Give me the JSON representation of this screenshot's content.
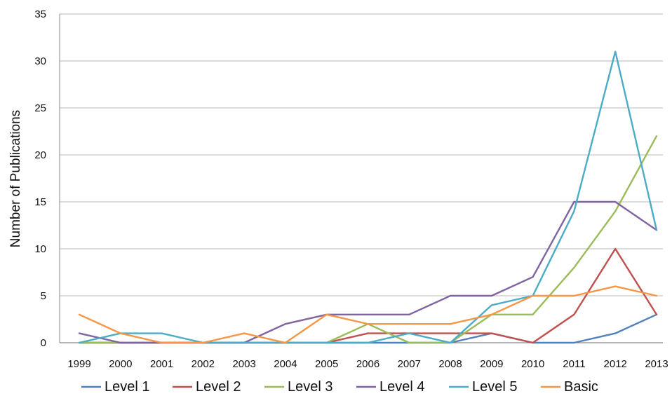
{
  "chart_data": {
    "type": "line",
    "ylabel": "Number of Publications",
    "xlabel": "",
    "x": [
      "1999",
      "2000",
      "2001",
      "2002",
      "2003",
      "2004",
      "2005",
      "2006",
      "2007",
      "2008",
      "2009",
      "2010",
      "2011",
      "2012",
      "2013"
    ],
    "ylim": [
      0,
      35
    ],
    "yticks": [
      0,
      5,
      10,
      15,
      20,
      25,
      30,
      35
    ],
    "grid": "horizontal",
    "legend_position": "bottom",
    "series": [
      {
        "name": "Level 1",
        "color": "#4f81bd",
        "values": [
          0,
          0,
          0,
          0,
          0,
          0,
          0,
          0,
          0,
          0,
          1,
          0,
          0,
          1,
          3
        ]
      },
      {
        "name": "Level 2",
        "color": "#c0504d",
        "values": [
          0,
          0,
          0,
          0,
          0,
          0,
          0,
          1,
          1,
          1,
          1,
          0,
          3,
          10,
          3
        ]
      },
      {
        "name": "Level 3",
        "color": "#9bbb59",
        "values": [
          0,
          0,
          0,
          0,
          0,
          0,
          0,
          2,
          0,
          0,
          3,
          3,
          8,
          14,
          22
        ]
      },
      {
        "name": "Level 4",
        "color": "#8064a2",
        "values": [
          1,
          0,
          0,
          0,
          0,
          2,
          3,
          3,
          3,
          5,
          5,
          7,
          15,
          15,
          12
        ]
      },
      {
        "name": "Level 5",
        "color": "#4bacc6",
        "values": [
          0,
          1,
          1,
          0,
          0,
          0,
          0,
          0,
          1,
          0,
          4,
          5,
          14,
          31,
          12
        ]
      },
      {
        "name": "Basic",
        "color": "#f79646",
        "values": [
          3,
          1,
          0,
          0,
          1,
          0,
          3,
          2,
          2,
          2,
          3,
          5,
          5,
          6,
          5
        ]
      }
    ]
  }
}
